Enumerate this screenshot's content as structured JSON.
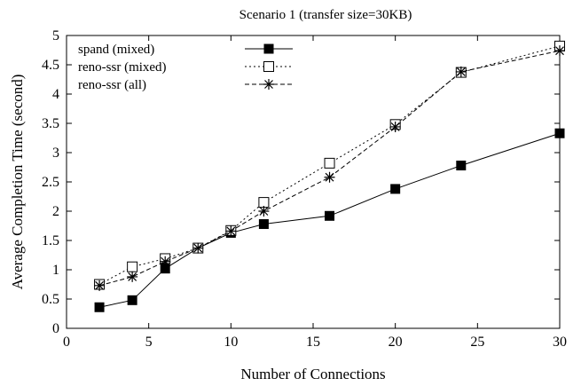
{
  "chart_data": {
    "type": "line",
    "title": "Scenario 1 (transfer size=30KB)",
    "xlabel": "Number of Connections",
    "ylabel": "Average Completion Time (second)",
    "xlim": [
      0,
      30
    ],
    "ylim": [
      0,
      5
    ],
    "x_ticks": [
      0,
      5,
      10,
      15,
      20,
      25,
      30
    ],
    "y_ticks": [
      0,
      0.5,
      1,
      1.5,
      2,
      2.5,
      3,
      3.5,
      4,
      4.5,
      5
    ],
    "grid": false,
    "legend_position": "top-left",
    "series": [
      {
        "name": "spand (mixed)",
        "line_style": "solid",
        "marker": "filled-square",
        "x": [
          2,
          4,
          6,
          8,
          10,
          12,
          16,
          20,
          24,
          30
        ],
        "y": [
          0.36,
          0.48,
          1.02,
          1.37,
          1.63,
          1.78,
          1.92,
          2.38,
          2.78,
          3.33
        ]
      },
      {
        "name": "reno-ssr (mixed)",
        "line_style": "dotted",
        "marker": "open-square",
        "x": [
          2,
          4,
          6,
          8,
          10,
          12,
          16,
          20,
          24,
          30
        ],
        "y": [
          0.75,
          1.05,
          1.19,
          1.37,
          1.67,
          2.15,
          2.82,
          3.48,
          4.37,
          4.82
        ]
      },
      {
        "name": "reno-ssr (all)",
        "line_style": "dashed",
        "marker": "asterisk",
        "x": [
          2,
          4,
          6,
          8,
          10,
          12,
          16,
          20,
          24,
          30
        ],
        "y": [
          0.73,
          0.88,
          1.14,
          1.37,
          1.66,
          2.0,
          2.58,
          3.44,
          4.38,
          4.74
        ]
      }
    ]
  }
}
